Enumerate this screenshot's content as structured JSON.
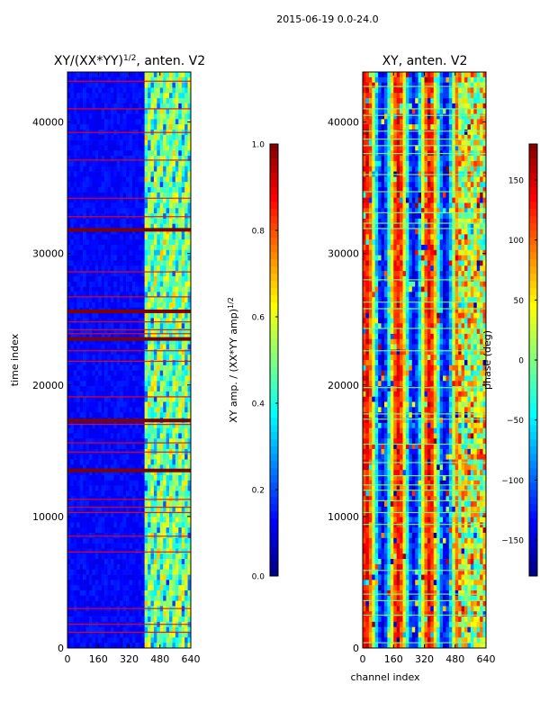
{
  "suptitle": "2015-06-19 0.0-24.0",
  "colors": {
    "background": "#ffffff",
    "jet": [
      "#00007f",
      "#0000ff",
      "#007fff",
      "#00ffff",
      "#7fff7f",
      "#ffff00",
      "#ff7f00",
      "#ff0000",
      "#7f0000"
    ]
  },
  "chart_data": [
    {
      "type": "heatmap",
      "title": "XY/(XX*YY)^1/2, anten. V2",
      "title_main": "XY/(XX*YY)",
      "title_exp": "1/2",
      "title_tail": ", anten. V2",
      "xlabel": "",
      "ylabel": "time index",
      "xlim": [
        0,
        640
      ],
      "ylim": [
        0,
        43800
      ],
      "xticks": [
        0,
        160,
        320,
        480,
        640
      ],
      "yticks": [
        0,
        10000,
        20000,
        30000,
        40000
      ],
      "colorbar": {
        "label": "XY amp. / (XX*YY amp)^1/2",
        "label_main": "XY amp. / (XX*YY amp)",
        "label_exp": "1/2",
        "range": [
          0.0,
          1.0
        ],
        "ticks": [
          "0.0",
          "0.2",
          "0.4",
          "0.6",
          "0.8",
          "1.0"
        ],
        "tick_values": [
          0.0,
          0.2,
          0.4,
          0.6,
          0.8,
          1.0
        ]
      },
      "background_value": 0.1,
      "high_activity_channels": [
        400,
        640
      ],
      "saturated_rows": [
        31800,
        17300,
        13500,
        25600,
        23500
      ],
      "flagged_rows": [
        1200,
        1800,
        3000,
        7300,
        8500,
        10300,
        10700,
        11300,
        14900,
        15600,
        17000,
        19100,
        21800,
        22600,
        23900,
        24200,
        24800,
        26700,
        28600,
        32800,
        34200,
        37100,
        39200,
        41000,
        43100
      ]
    },
    {
      "type": "heatmap",
      "title": "XY, anten. V2",
      "xlabel": "channel index",
      "ylabel": "",
      "xlim": [
        0,
        640
      ],
      "ylim": [
        0,
        43800
      ],
      "xticks": [
        0,
        160,
        320,
        480,
        640
      ],
      "yticks": [
        0,
        10000,
        20000,
        30000,
        40000
      ],
      "colorbar": {
        "label": "phase (deg)",
        "range": [
          -180,
          180
        ],
        "ticks": [
          "−150",
          "−100",
          "−50",
          "0",
          "50",
          "100",
          "150"
        ],
        "tick_values": [
          -150,
          -100,
          -50,
          0,
          50,
          100,
          150
        ]
      },
      "flagged_rows": [
        400,
        2500,
        3600,
        4100,
        5900,
        9400,
        10300,
        11200,
        12000,
        12400,
        13100,
        14100,
        15500,
        17400,
        17800,
        19800,
        22600,
        24300,
        25800,
        26300,
        28000,
        31900,
        32300,
        33100,
        34700,
        36000,
        37600,
        38200,
        38700,
        39300,
        40500,
        41000,
        42700
      ]
    }
  ]
}
